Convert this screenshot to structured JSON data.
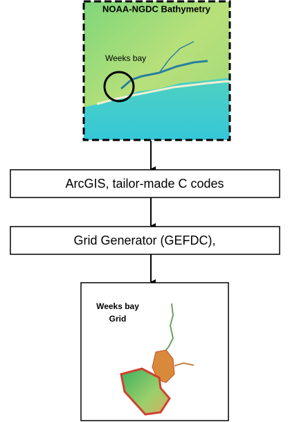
{
  "input": {
    "title": "NOAA-NGDC Bathymetry",
    "label": "Weeks bay"
  },
  "steps": [
    "ArcGIS, tailor-made C codes",
    "Grid Generator (GEFDC),"
  ],
  "output": {
    "label_line1": "Weeks bay",
    "label_line2": "Grid"
  }
}
